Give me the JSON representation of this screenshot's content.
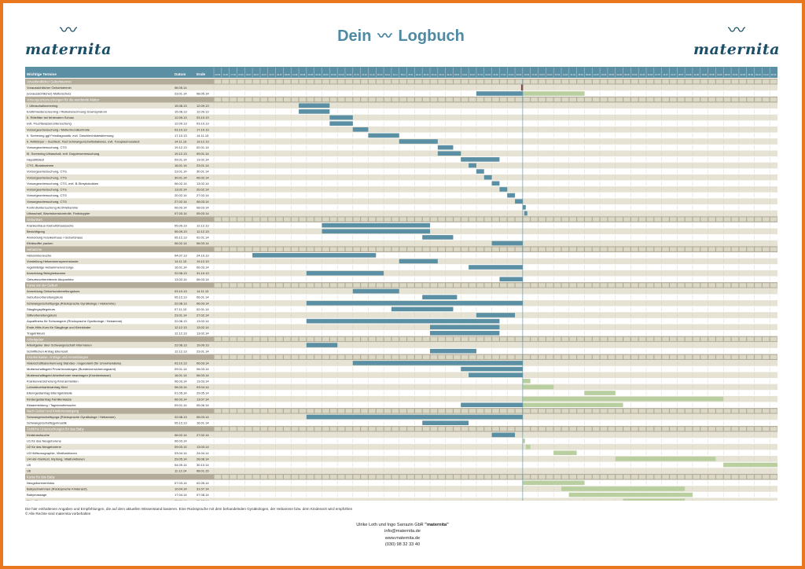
{
  "header": {
    "brand_left": "maternita",
    "brand_right": "maternita",
    "title_part1": "Dein",
    "title_part2": "Logbuch"
  },
  "colors": {
    "frame": "#e8771e",
    "bar_primary": "#5b8fa3",
    "bar_secondary": "#b9cfa0",
    "section_band": "#b3ac9a",
    "row_shade": "#e6e3d5",
    "today_marker": "#a8322b",
    "brand": "#1c4e67"
  },
  "chart_data": {
    "type": "gantt",
    "columns": {
      "task": "Wichtige Termine",
      "start": "Datum",
      "end": "Ende"
    },
    "timeline": {
      "start": "2013-06-03",
      "weeks": 73,
      "today_week": 30
    },
    "sections": [
      {
        "label": "Unverbindlicher Geburtstermin",
        "rows": [
          {
            "task": "Voraussichtlicher Geburtstermin",
            "start": "06.05.14",
            "end": ""
          },
          {
            "task": "(voraussichtlicher) Mutterschutz",
            "start": "23.01.14",
            "end": "08.05.14",
            "s": 34,
            "e": 40,
            "c": "p",
            "s2": 40,
            "e2": 48
          }
        ]
      },
      {
        "label": "Vorsorgeuntersuchungen für die werdende Mutter",
        "rows": [
          {
            "task": "I. Ultraschallscreening",
            "start": "15.08.13",
            "end": "12.09.13",
            "s": 11,
            "e": 15,
            "c": "p"
          },
          {
            "task": "Ersttrimesterscreening / Risikoberechnung Downsyndrom",
            "start": "15.08.13",
            "end": "12.09.13",
            "s": 11,
            "e": 15,
            "c": "p"
          },
          {
            "task": "II. Röteltiter bei fehlendem Schutz",
            "start": "12.09.13",
            "end": "03.10.13",
            "s": 15,
            "e": 18,
            "c": "p"
          },
          {
            "task": "evtl. Fruchtwasseruntersuchung",
            "start": "12.09.13",
            "end": "03.10.13",
            "s": 15,
            "e": 18,
            "c": "p"
          },
          {
            "task": "Vorsorgeuntersuchung / Muttermundkontrolle",
            "start": "03.10.13",
            "end": "17.10.13",
            "s": 18,
            "e": 20,
            "c": "p"
          },
          {
            "task": "II. Screening ggf Feindiagnostik; evtl. Geschlechtsbestimmung",
            "start": "17.10.13",
            "end": "14.11.13",
            "s": 20,
            "e": 24,
            "c": "p"
          },
          {
            "task": "II. Antikörper – Suchtest, Test Schwangerschaftsdiabetes, evtl. Toxoplasmosetest",
            "start": "14.11.13",
            "end": "19.12.13",
            "s": 24,
            "e": 29,
            "c": "p"
          },
          {
            "task": "Vorsorgeuntersuchung, CTG",
            "start": "19.12.13",
            "end": "02.01.14",
            "s": 29,
            "e": 31,
            "c": "p"
          },
          {
            "task": "III. Screening Ultraschall, evtl. Dopplerumersuchung",
            "start": "19.12.13",
            "end": "09.01.14",
            "s": 29,
            "e": 32,
            "c": "p"
          },
          {
            "task": "Hepatitistest",
            "start": "09.01.14",
            "end": "13.02.14",
            "s": 32,
            "e": 37,
            "c": "p"
          },
          {
            "task": "CTG, Blutabnahme",
            "start": "16.01.14",
            "end": "23.01.14",
            "s": 33,
            "e": 34,
            "c": "p"
          },
          {
            "task": "Vorsorgeuntersuchung, CTG",
            "start": "23.01.14",
            "end": "30.01.14",
            "s": 34,
            "e": 35,
            "c": "p"
          },
          {
            "task": "Vorsorgeuntersuchung, CTG",
            "start": "30.01.14",
            "end": "06.02.14",
            "s": 35,
            "e": 36,
            "c": "p"
          },
          {
            "task": "Vorsorgeuntersuchung, CTG, evtl. B-Streptokokken",
            "start": "06.02.14",
            "end": "13.02.14",
            "s": 36,
            "e": 37,
            "c": "p"
          },
          {
            "task": "Vorsorgeuntersuchung, CTG",
            "start": "13.02.14",
            "end": "20.02.14",
            "s": 37,
            "e": 38,
            "c": "p"
          },
          {
            "task": "Vorsorgeuntersuchung, CTG",
            "start": "20.02.14",
            "end": "27.02.14",
            "s": 38,
            "e": 39,
            "c": "p"
          },
          {
            "task": "Vorsorgeuntersuchung, CTG",
            "start": "27.02.14",
            "end": "06.03.14",
            "s": 39,
            "e": 40,
            "c": "p"
          },
          {
            "task": "Kontrolluntersuchung Arzt/Hebamme",
            "start": "06.03.14",
            "end": "08.03.14",
            "s": 40,
            "e": 40.4,
            "c": "p"
          },
          {
            "task": "Ultraschall, Wachstumskontrolle, Farbdoppler",
            "start": "07.03.14",
            "end": "09.03.14",
            "s": 40.2,
            "e": 40.6,
            "c": "p"
          }
        ]
      },
      {
        "label": "Geburtsort",
        "rows": [
          {
            "task": "Krankenhaus-/Geburtshaussuche",
            "start": "05.09.13",
            "end": "12.12.13",
            "s": 14,
            "e": 28,
            "c": "p"
          },
          {
            "task": "Besichtigung",
            "start": "05.09.13",
            "end": "12.12.13",
            "s": 14,
            "e": 28,
            "c": "p"
          },
          {
            "task": "Anmeldung Krankenhaus / Geburtshaus",
            "start": "05.12.13",
            "end": "02.01.14",
            "s": 27,
            "e": 31,
            "c": "p"
          },
          {
            "task": "Kliniksoffer packen",
            "start": "06.02.14",
            "end": "06.03.14",
            "s": 36,
            "e": 40,
            "c": "p"
          }
        ]
      },
      {
        "label": "Hebamme",
        "rows": [
          {
            "task": "Hebammensuche",
            "start": "04.07.13",
            "end": "24.10.13",
            "s": 5,
            "e": 21,
            "c": "p"
          },
          {
            "task": "Vorstellung Hebammensprechstunde",
            "start": "14.11.13",
            "end": "19.12.13",
            "s": 24,
            "e": 29,
            "c": "p"
          },
          {
            "task": "regelmäßige Hebammenvorsorge",
            "start": "16.01.14",
            "end": "06.03.14",
            "s": 33,
            "e": 40,
            "c": "p"
          },
          {
            "task": "Anmeldung Beleghebamme",
            "start": "22.08.13",
            "end": "31.10.13",
            "s": 12,
            "e": 22,
            "c": "p"
          },
          {
            "task": "Geburtsvorbereitende Akupunktur",
            "start": "13.02.14",
            "end": "06.03.14",
            "s": 37,
            "e": 40,
            "c": "p"
          }
        ]
      },
      {
        "label": "Kurse vor der Geburt",
        "rows": [
          {
            "task": "Anmeldung Geburtsvorbereitungskurs",
            "start": "03.10.13",
            "end": "14.11.13",
            "s": 18,
            "e": 24,
            "c": "p"
          },
          {
            "task": "Geburtsvorbereitungskurs",
            "start": "05.12.13",
            "end": "06.01.14",
            "s": 27,
            "e": 31.5,
            "c": "p"
          },
          {
            "task": "Schwangerschaftsyoga (Rücksprache Gynäkologe / Hebamme)",
            "start": "22.08.13",
            "end": "06.03.14",
            "s": 12,
            "e": 40,
            "c": "p"
          },
          {
            "task": "Säuglingspflegekurs",
            "start": "07.11.13",
            "end": "02.01.14",
            "s": 23,
            "e": 31,
            "c": "p"
          },
          {
            "task": "Stillvorbereitungskurs",
            "start": "23.01.14",
            "end": "27.02.14",
            "s": 34,
            "e": 39,
            "c": "p"
          },
          {
            "task": "Aquafitness für Schwangere (Rücksprache Gynäkologe / Hebamme)",
            "start": "22.08.13",
            "end": "13.02.14",
            "s": 12,
            "e": 37,
            "c": "p"
          },
          {
            "task": "Erste-Hilfe-Kurs für Säuglinge und Kleinkinder",
            "start": "12.12.13",
            "end": "13.02.14",
            "s": 28,
            "e": 37,
            "c": "p"
          },
          {
            "task": "Tragetrikkurs",
            "start": "12.12.13",
            "end": "13.02.14",
            "s": 28,
            "e": 37,
            "c": "p"
          }
        ]
      },
      {
        "label": "Arbeitgeber",
        "rows": [
          {
            "task": "Arbeitgeber über Schwangerschaft informieren",
            "start": "22.08.13",
            "end": "19.09.13",
            "s": 12,
            "e": 16,
            "c": "p"
          },
          {
            "task": "Schriftlichen Antrag Elternzeit",
            "start": "12.12.13",
            "end": "23.01.14",
            "s": 28,
            "e": 34,
            "c": "p"
          }
        ]
      },
      {
        "label": "Krankenkasse, Anträge und Anmeldungen",
        "rows": [
          {
            "task": "Vaterschaftsanerkennung Standes- /Jugendamt (für Unverheiratete)",
            "start": "03.10.13",
            "end": "06.03.14",
            "s": 18,
            "e": 40,
            "c": "p"
          },
          {
            "task": "Mutterschaftsgeld Privat beantragen (Bundesversicherungsamt)",
            "start": "09.01.14",
            "end": "06.03.14",
            "s": 32,
            "e": 40,
            "c": "p"
          },
          {
            "task": "Mutterschaftsgeld Arbeitnehmer beantragen (Krankenkasse)",
            "start": "16.01.14",
            "end": "06.03.14",
            "s": 33,
            "e": 40,
            "c": "p"
          },
          {
            "task": "Krankenversicherung Kind anmelden",
            "start": "06.03.14",
            "end": "13.03.14",
            "s": 40,
            "e": 41,
            "c": "g"
          },
          {
            "task": "Lohnsteuerkartenantrag Kind",
            "start": "06.03.14",
            "end": "03.04.14",
            "s": 40,
            "e": 44,
            "c": "g"
          },
          {
            "task": "Elterngeldantrag Elterngeldstelle",
            "start": "01.05.14",
            "end": "29.05.14",
            "s": 48,
            "e": 52,
            "c": "g"
          },
          {
            "task": "Kindergeldantrag Familienkasse",
            "start": "06.03.14",
            "end": "13.07.14",
            "s": 40,
            "e": 66,
            "c": "g"
          },
          {
            "task": "Kitaanmeldung / Tagesmuttersuche",
            "start": "09.01.14",
            "end": "05.06.14",
            "s": 32,
            "e": 40,
            "c": "p",
            "s2": 40,
            "e2": 53
          }
        ]
      },
      {
        "label": "Nach Geburt und Kinderversorgung",
        "rows": [
          {
            "task": "Schwangerschaftsyoga (Rücksprache Gynäkologe / Hebamme)",
            "start": "22.08.13",
            "end": "06.03.14",
            "s": 12,
            "e": 40,
            "c": "p"
          },
          {
            "task": "Schwangerschaftsgymnastik",
            "start": "05.12.13",
            "end": "16.01.14",
            "s": 27,
            "e": 33,
            "c": "p"
          }
        ]
      },
      {
        "label": "Ärztliche Untersuchungen für das Baby",
        "rows": [
          {
            "task": "Kinderarztsuche",
            "start": "06.02.14",
            "end": "27.02.14",
            "s": 36,
            "e": 39,
            "c": "p"
          },
          {
            "task": "U1 für das Neugeborene",
            "start": "06.03.14",
            "end": "",
            "s": 40,
            "e": 40.3,
            "c": "g"
          },
          {
            "task": "U2 für das Neugeborene",
            "start": "09.03.14",
            "end": "13.03.14",
            "s": 40.4,
            "e": 41,
            "c": "g"
          },
          {
            "task": "U3 Hüftsonographie, Vitalfunktionen",
            "start": "03.04.14",
            "end": "24.04.14",
            "s": 44,
            "e": 47,
            "c": "g"
          },
          {
            "task": "U4 Hör-/Sehtest, Impfung, Vitalfunktionen",
            "start": "29.05.14",
            "end": "28.08.14",
            "s": 52,
            "e": 65,
            "c": "g"
          },
          {
            "task": "U5",
            "start": "04.09.14",
            "end": "30.10.14",
            "s": 66,
            "e": 74,
            "c": "g"
          },
          {
            "task": "U6",
            "start": "11.12.14",
            "end": "08.01.15",
            "s": 80,
            "e": 84,
            "c": "g"
          }
        ]
      },
      {
        "label": "Kurse für das Baby",
        "rows": [
          {
            "task": "Neugeborenenfotos",
            "start": "07.03.14",
            "end": "02.05.14",
            "s": 40,
            "e": 48,
            "c": "g"
          },
          {
            "task": "Babyschwimmen (Rücksprache Kinderarzt)",
            "start": "10.04.14",
            "end": "31.07.14",
            "s": 45,
            "e": 61,
            "c": "g"
          },
          {
            "task": "Babymassage",
            "start": "17.04.14",
            "end": "07.08.14",
            "s": 46,
            "e": 62,
            "c": "g"
          },
          {
            "task": "Pikler/Pekip",
            "start": "05.06.14",
            "end": "31.07.14",
            "s": 53,
            "e": 61,
            "c": "g"
          },
          {
            "task": "Beikosteinführung (Rücksprache Kinderarzt / Hebamme)",
            "start": "03.07.14",
            "end": "25.09.14",
            "s": 57,
            "e": 69,
            "c": "g"
          }
        ]
      }
    ]
  },
  "footer": {
    "note_line1": "Die hier enthaltenen Angaben und Empfehlungen, die auf dem aktuellen Wissenstand basieren. Eine Rücksprache mit dem behandelnden Gynäkologen, der Hebamme bzw. dem Kinderarzt wird empfohlen",
    "note_line2": "© Alle Rechte sind maternita vorbehalten",
    "contact_name": "Ulrike Loth und Ingo Sarrazin GbR",
    "contact_brand": "\"maternita\"",
    "contact_email": "info@maternita.de",
    "contact_web": "www.maternita.de",
    "contact_phone": "(030) 98 32 33 40"
  }
}
